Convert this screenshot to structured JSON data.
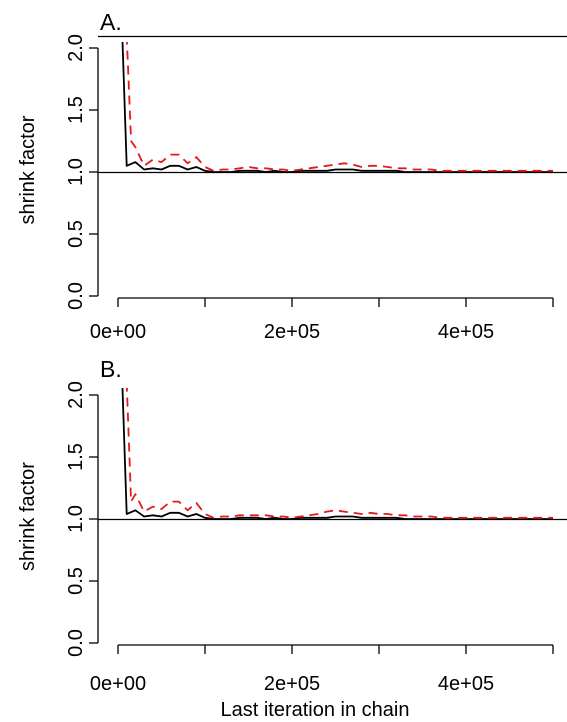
{
  "figure": {
    "xlabel": "Last iteration in chain"
  },
  "chart_data": [
    {
      "type": "line",
      "panel_label": "A.",
      "ylabel": "shrink factor",
      "xlabel": "",
      "xlim": [
        0,
        500000
      ],
      "ylim": [
        0,
        2.0
      ],
      "x_ticks": [
        0,
        100000,
        200000,
        300000,
        400000,
        500000
      ],
      "x_tick_labels": [
        "0e+00",
        "",
        "2e+05",
        "",
        "4e+05",
        ""
      ],
      "y_ticks": [
        0.0,
        0.5,
        1.0,
        1.5,
        2.0
      ],
      "y_tick_labels": [
        "0.0",
        "0.5",
        "1.0",
        "1.5",
        "2.0"
      ],
      "reference_lines": [
        1.0,
        2.1
      ],
      "grid": false,
      "series": [
        {
          "color": "#000000",
          "dash": "solid",
          "x": [
            5000,
            10000,
            20000,
            30000,
            40000,
            50000,
            60000,
            70000,
            80000,
            90000,
            100000,
            110000,
            120000,
            130000,
            140000,
            150000,
            160000,
            170000,
            180000,
            190000,
            200000,
            210000,
            220000,
            230000,
            240000,
            250000,
            260000,
            270000,
            280000,
            290000,
            300000,
            310000,
            320000,
            330000,
            340000,
            350000,
            360000,
            370000,
            380000,
            390000,
            400000,
            410000,
            420000,
            430000,
            440000,
            450000,
            460000,
            470000,
            480000,
            490000,
            500000
          ],
          "y": [
            2.1,
            1.05,
            1.08,
            1.02,
            1.03,
            1.02,
            1.05,
            1.05,
            1.02,
            1.04,
            1.01,
            1.0,
            1.0,
            1.0,
            1.01,
            1.01,
            1.01,
            1.0,
            1.01,
            1.0,
            1.0,
            1.01,
            1.01,
            1.01,
            1.01,
            1.02,
            1.02,
            1.02,
            1.01,
            1.01,
            1.01,
            1.01,
            1.01,
            1.0,
            1.0,
            1.0,
            1.0,
            1.0,
            1.0,
            1.0,
            1.0,
            1.0,
            1.0,
            1.0,
            1.0,
            1.0,
            1.0,
            1.0,
            1.0,
            1.0,
            1.0
          ]
        },
        {
          "color": "#e31a1c",
          "dash": "dashed",
          "x": [
            10000,
            15000,
            20000,
            30000,
            40000,
            50000,
            60000,
            70000,
            80000,
            90000,
            100000,
            110000,
            120000,
            130000,
            140000,
            150000,
            160000,
            170000,
            180000,
            190000,
            200000,
            210000,
            220000,
            230000,
            240000,
            250000,
            260000,
            270000,
            280000,
            290000,
            300000,
            310000,
            320000,
            330000,
            340000,
            350000,
            360000,
            370000,
            380000,
            390000,
            400000,
            410000,
            420000,
            430000,
            440000,
            450000,
            460000,
            470000,
            480000,
            490000,
            500000
          ],
          "y": [
            2.1,
            1.25,
            1.2,
            1.05,
            1.1,
            1.08,
            1.14,
            1.14,
            1.07,
            1.12,
            1.04,
            1.01,
            1.02,
            1.02,
            1.03,
            1.04,
            1.03,
            1.03,
            1.02,
            1.02,
            1.01,
            1.02,
            1.03,
            1.04,
            1.05,
            1.06,
            1.07,
            1.06,
            1.04,
            1.05,
            1.05,
            1.04,
            1.03,
            1.03,
            1.02,
            1.02,
            1.02,
            1.01,
            1.01,
            1.01,
            1.01,
            1.01,
            1.01,
            1.01,
            1.01,
            1.01,
            1.01,
            1.01,
            1.01,
            1.01,
            1.01
          ]
        }
      ]
    },
    {
      "type": "line",
      "panel_label": "B.",
      "ylabel": "shrink factor",
      "xlabel": "Last iteration in chain",
      "xlim": [
        0,
        500000
      ],
      "ylim": [
        0,
        2.0
      ],
      "x_ticks": [
        0,
        100000,
        200000,
        300000,
        400000,
        500000
      ],
      "x_tick_labels": [
        "0e+00",
        "",
        "2e+05",
        "",
        "4e+05",
        ""
      ],
      "y_ticks": [
        0.0,
        0.5,
        1.0,
        1.5,
        2.0
      ],
      "y_tick_labels": [
        "0.0",
        "0.5",
        "1.0",
        "1.5",
        "2.0"
      ],
      "reference_lines": [
        1.0
      ],
      "grid": false,
      "series": [
        {
          "color": "#000000",
          "dash": "solid",
          "x": [
            5000,
            10000,
            20000,
            30000,
            40000,
            50000,
            60000,
            70000,
            80000,
            90000,
            100000,
            110000,
            120000,
            130000,
            140000,
            150000,
            160000,
            170000,
            180000,
            190000,
            200000,
            210000,
            220000,
            230000,
            240000,
            250000,
            260000,
            270000,
            280000,
            290000,
            300000,
            310000,
            320000,
            330000,
            340000,
            350000,
            360000,
            370000,
            380000,
            390000,
            400000,
            410000,
            420000,
            430000,
            440000,
            450000,
            460000,
            470000,
            480000,
            490000,
            500000
          ],
          "y": [
            2.1,
            1.04,
            1.07,
            1.02,
            1.03,
            1.02,
            1.05,
            1.05,
            1.02,
            1.04,
            1.01,
            1.0,
            1.0,
            1.0,
            1.01,
            1.01,
            1.01,
            1.0,
            1.01,
            1.0,
            1.0,
            1.01,
            1.01,
            1.01,
            1.01,
            1.02,
            1.02,
            1.02,
            1.01,
            1.01,
            1.01,
            1.01,
            1.01,
            1.0,
            1.0,
            1.0,
            1.0,
            1.0,
            1.0,
            1.0,
            1.0,
            1.0,
            1.0,
            1.0,
            1.0,
            1.0,
            1.0,
            1.0,
            1.0,
            1.0,
            1.0
          ]
        },
        {
          "color": "#e31a1c",
          "dash": "dashed",
          "x": [
            10000,
            15000,
            20000,
            30000,
            40000,
            50000,
            60000,
            70000,
            80000,
            90000,
            100000,
            110000,
            120000,
            130000,
            140000,
            150000,
            160000,
            170000,
            180000,
            190000,
            200000,
            210000,
            220000,
            230000,
            240000,
            250000,
            260000,
            270000,
            280000,
            290000,
            300000,
            310000,
            320000,
            330000,
            340000,
            350000,
            360000,
            370000,
            380000,
            390000,
            400000,
            410000,
            420000,
            430000,
            440000,
            450000,
            460000,
            470000,
            480000,
            490000,
            500000
          ],
          "y": [
            2.1,
            1.14,
            1.2,
            1.06,
            1.1,
            1.08,
            1.14,
            1.14,
            1.07,
            1.13,
            1.04,
            1.01,
            1.02,
            1.02,
            1.03,
            1.03,
            1.03,
            1.03,
            1.02,
            1.02,
            1.01,
            1.02,
            1.03,
            1.04,
            1.06,
            1.07,
            1.06,
            1.05,
            1.04,
            1.05,
            1.04,
            1.04,
            1.03,
            1.03,
            1.02,
            1.02,
            1.02,
            1.01,
            1.01,
            1.01,
            1.01,
            1.01,
            1.01,
            1.01,
            1.01,
            1.01,
            1.01,
            1.01,
            1.01,
            1.01,
            1.01
          ]
        }
      ]
    }
  ]
}
